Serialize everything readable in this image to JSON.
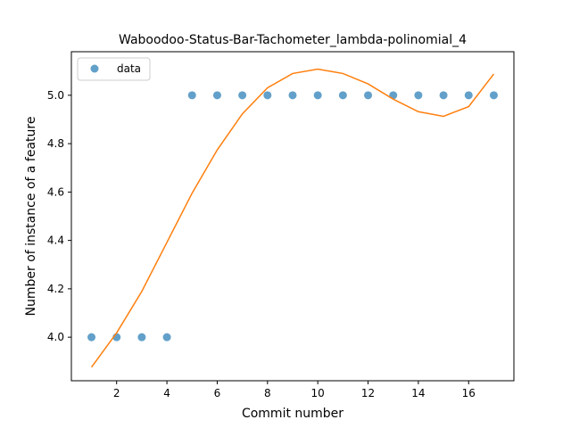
{
  "chart_data": {
    "type": "scatter",
    "title": "Waboodoo-Status-Bar-Tachometer_lambda-polinomial_4",
    "xlabel": "Commit number",
    "ylabel": "Number of instance of a feature",
    "xlim": [
      0.2,
      17.8
    ],
    "ylim": [
      3.82,
      5.18
    ],
    "xticks": [
      2,
      4,
      6,
      8,
      10,
      12,
      14,
      16
    ],
    "yticks": [
      4.0,
      4.2,
      4.4,
      4.6,
      4.8,
      5.0
    ],
    "ytick_labels": [
      "4.0",
      "4.2",
      "4.4",
      "4.6",
      "4.8",
      "5.0"
    ],
    "grid": false,
    "legend_position": "upper-left",
    "series": [
      {
        "name": "data",
        "kind": "scatter",
        "color": "#1f77b4",
        "x": [
          1,
          2,
          3,
          4,
          5,
          6,
          7,
          8,
          9,
          10,
          11,
          12,
          13,
          14,
          15,
          16,
          17
        ],
        "y": [
          4,
          4,
          4,
          4,
          5,
          5,
          5,
          5,
          5,
          5,
          5,
          5,
          5,
          5,
          5,
          5,
          5
        ]
      },
      {
        "kind": "line",
        "color": "#ff7f0e",
        "x": [
          1,
          2,
          3,
          4,
          5,
          6,
          7,
          8,
          9,
          10,
          11,
          12,
          13,
          14,
          15,
          16,
          17
        ],
        "y": [
          3.876,
          4.018,
          4.189,
          4.392,
          4.595,
          4.774,
          4.923,
          5.031,
          5.09,
          5.108,
          5.09,
          5.047,
          4.984,
          4.932,
          4.913,
          4.953,
          5.088
        ]
      }
    ]
  }
}
